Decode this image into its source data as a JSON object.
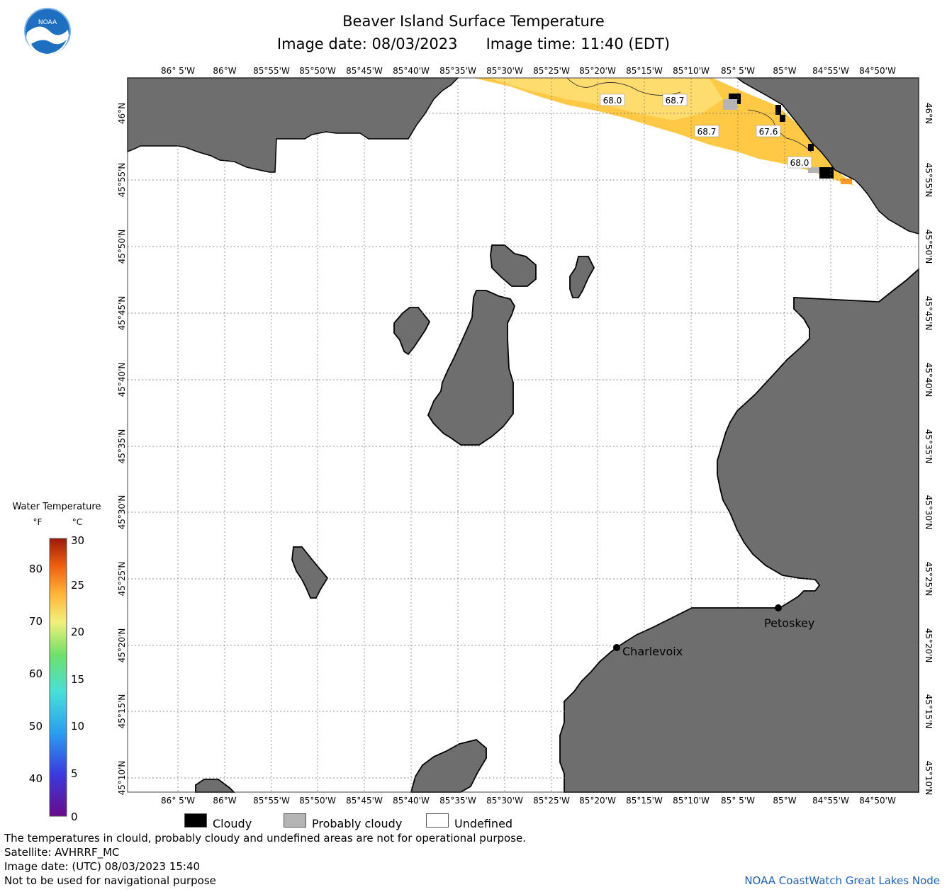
{
  "header": {
    "title": "Beaver Island Surface Temperature",
    "image_date": "Image date: 08/03/2023",
    "image_time": "Image time: 11:40 (EDT)"
  },
  "map": {
    "lon_labels": [
      "86° 5'W",
      "86°W",
      "85°55'W",
      "85°50'W",
      "85°45'W",
      "85°40'W",
      "85°35'W",
      "85°30'W",
      "85°25'W",
      "85°20'W",
      "85°15'W",
      "85°10'W",
      "85° 5'W",
      "85°W",
      "84°55'W",
      "84°50'W"
    ],
    "lat_labels": [
      "46°N",
      "45°55'N",
      "45°50'N",
      "45°45'N",
      "45°40'N",
      "45°35'N",
      "45°30'N",
      "45°25'N",
      "45°20'N",
      "45°15'N",
      "45°10'N"
    ],
    "temp_labels": [
      "68.0",
      "68.7",
      "68.7",
      "67.6",
      "68.0"
    ],
    "places": [
      "Charlevoix",
      "Petoskey"
    ],
    "colors": {
      "land": "#6e6e6e",
      "water_temp": "#ffc845",
      "cloudy": "#000000",
      "probably_cloudy": "#b4b4b4",
      "undefined": "#ffffff"
    }
  },
  "colorbar": {
    "title": "Water Temperature",
    "f_label": "°F",
    "c_label": "°C",
    "f_ticks": [
      "80",
      "70",
      "60",
      "50",
      "40"
    ],
    "c_ticks": [
      "30",
      "25",
      "20",
      "15",
      "10",
      "5",
      "0"
    ]
  },
  "legend": {
    "cloudy": "Cloudy",
    "probably_cloudy": "Probably cloudy",
    "undefined": "Undefined"
  },
  "footer": {
    "line1": "The temperatures in clould, probably cloudy and undefined areas are not for operational purpose.",
    "line2": "Satellite: AVHRRF_MC",
    "line3": "Image date: (UTC) 08/03/2023  15:40",
    "line4": "Not to be used for navigational purpose",
    "credit": "NOAA CoastWatch Great Lakes Node"
  },
  "logo": {
    "text": "NOAA",
    "icon": "noaa-logo"
  }
}
